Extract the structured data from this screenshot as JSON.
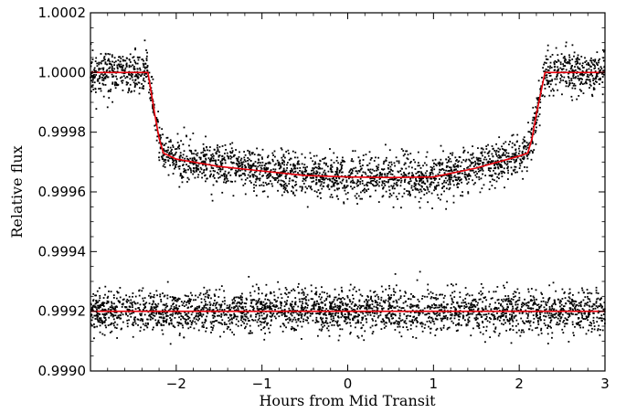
{
  "chart_data": {
    "type": "scatter",
    "title": "",
    "xlabel": "Hours from Mid Transit",
    "ylabel": "Relative flux",
    "xlim": [
      -3.0,
      3.0
    ],
    "ylim": [
      0.999,
      1.0002
    ],
    "x_ticks": [
      -2,
      -1,
      0,
      1,
      2,
      3
    ],
    "x_tick_labels": [
      "−2",
      "−1",
      "0",
      "1",
      "2",
      "3"
    ],
    "y_ticks": [
      0.999,
      0.9992,
      0.9994,
      0.9996,
      0.9998,
      1.0,
      1.0002
    ],
    "y_tick_labels": [
      "0.9990",
      "0.9992",
      "0.9994",
      "0.9996",
      "0.9998",
      "1.0000",
      "1.0002"
    ],
    "grid": false,
    "colors": {
      "points": "#000000",
      "model": "#e8000b"
    },
    "series": [
      {
        "kind": "points",
        "x_range": [
          -3.0,
          3.0
        ],
        "count": 2800,
        "scatter_sigma": 3.5e-05,
        "follows": "transit_model"
      },
      {
        "kind": "points",
        "x_range": [
          -3.0,
          3.0
        ],
        "count": 2800,
        "scatter_sigma": 3.5e-05,
        "baseline": 0.9992
      },
      {
        "kind": "line",
        "x": [
          -3.0,
          -2.33,
          -2.25,
          -2.2,
          -2.15,
          -2.0,
          -1.5,
          -1.0,
          -0.5,
          0.0,
          0.5,
          1.0,
          1.5,
          2.0,
          2.1,
          2.15,
          2.2,
          2.25,
          2.3,
          3.0
        ],
        "y": [
          1.0,
          1.0,
          0.99986,
          0.99978,
          0.99973,
          0.99971,
          0.999685,
          0.99967,
          0.999655,
          0.99965,
          0.999648,
          0.99965,
          0.99968,
          0.99972,
          0.99973,
          0.99978,
          0.99986,
          0.99993,
          1.0,
          1.0
        ]
      },
      {
        "kind": "line",
        "x": [
          -3.0,
          3.0
        ],
        "y": [
          0.9992,
          0.9992
        ]
      }
    ]
  }
}
